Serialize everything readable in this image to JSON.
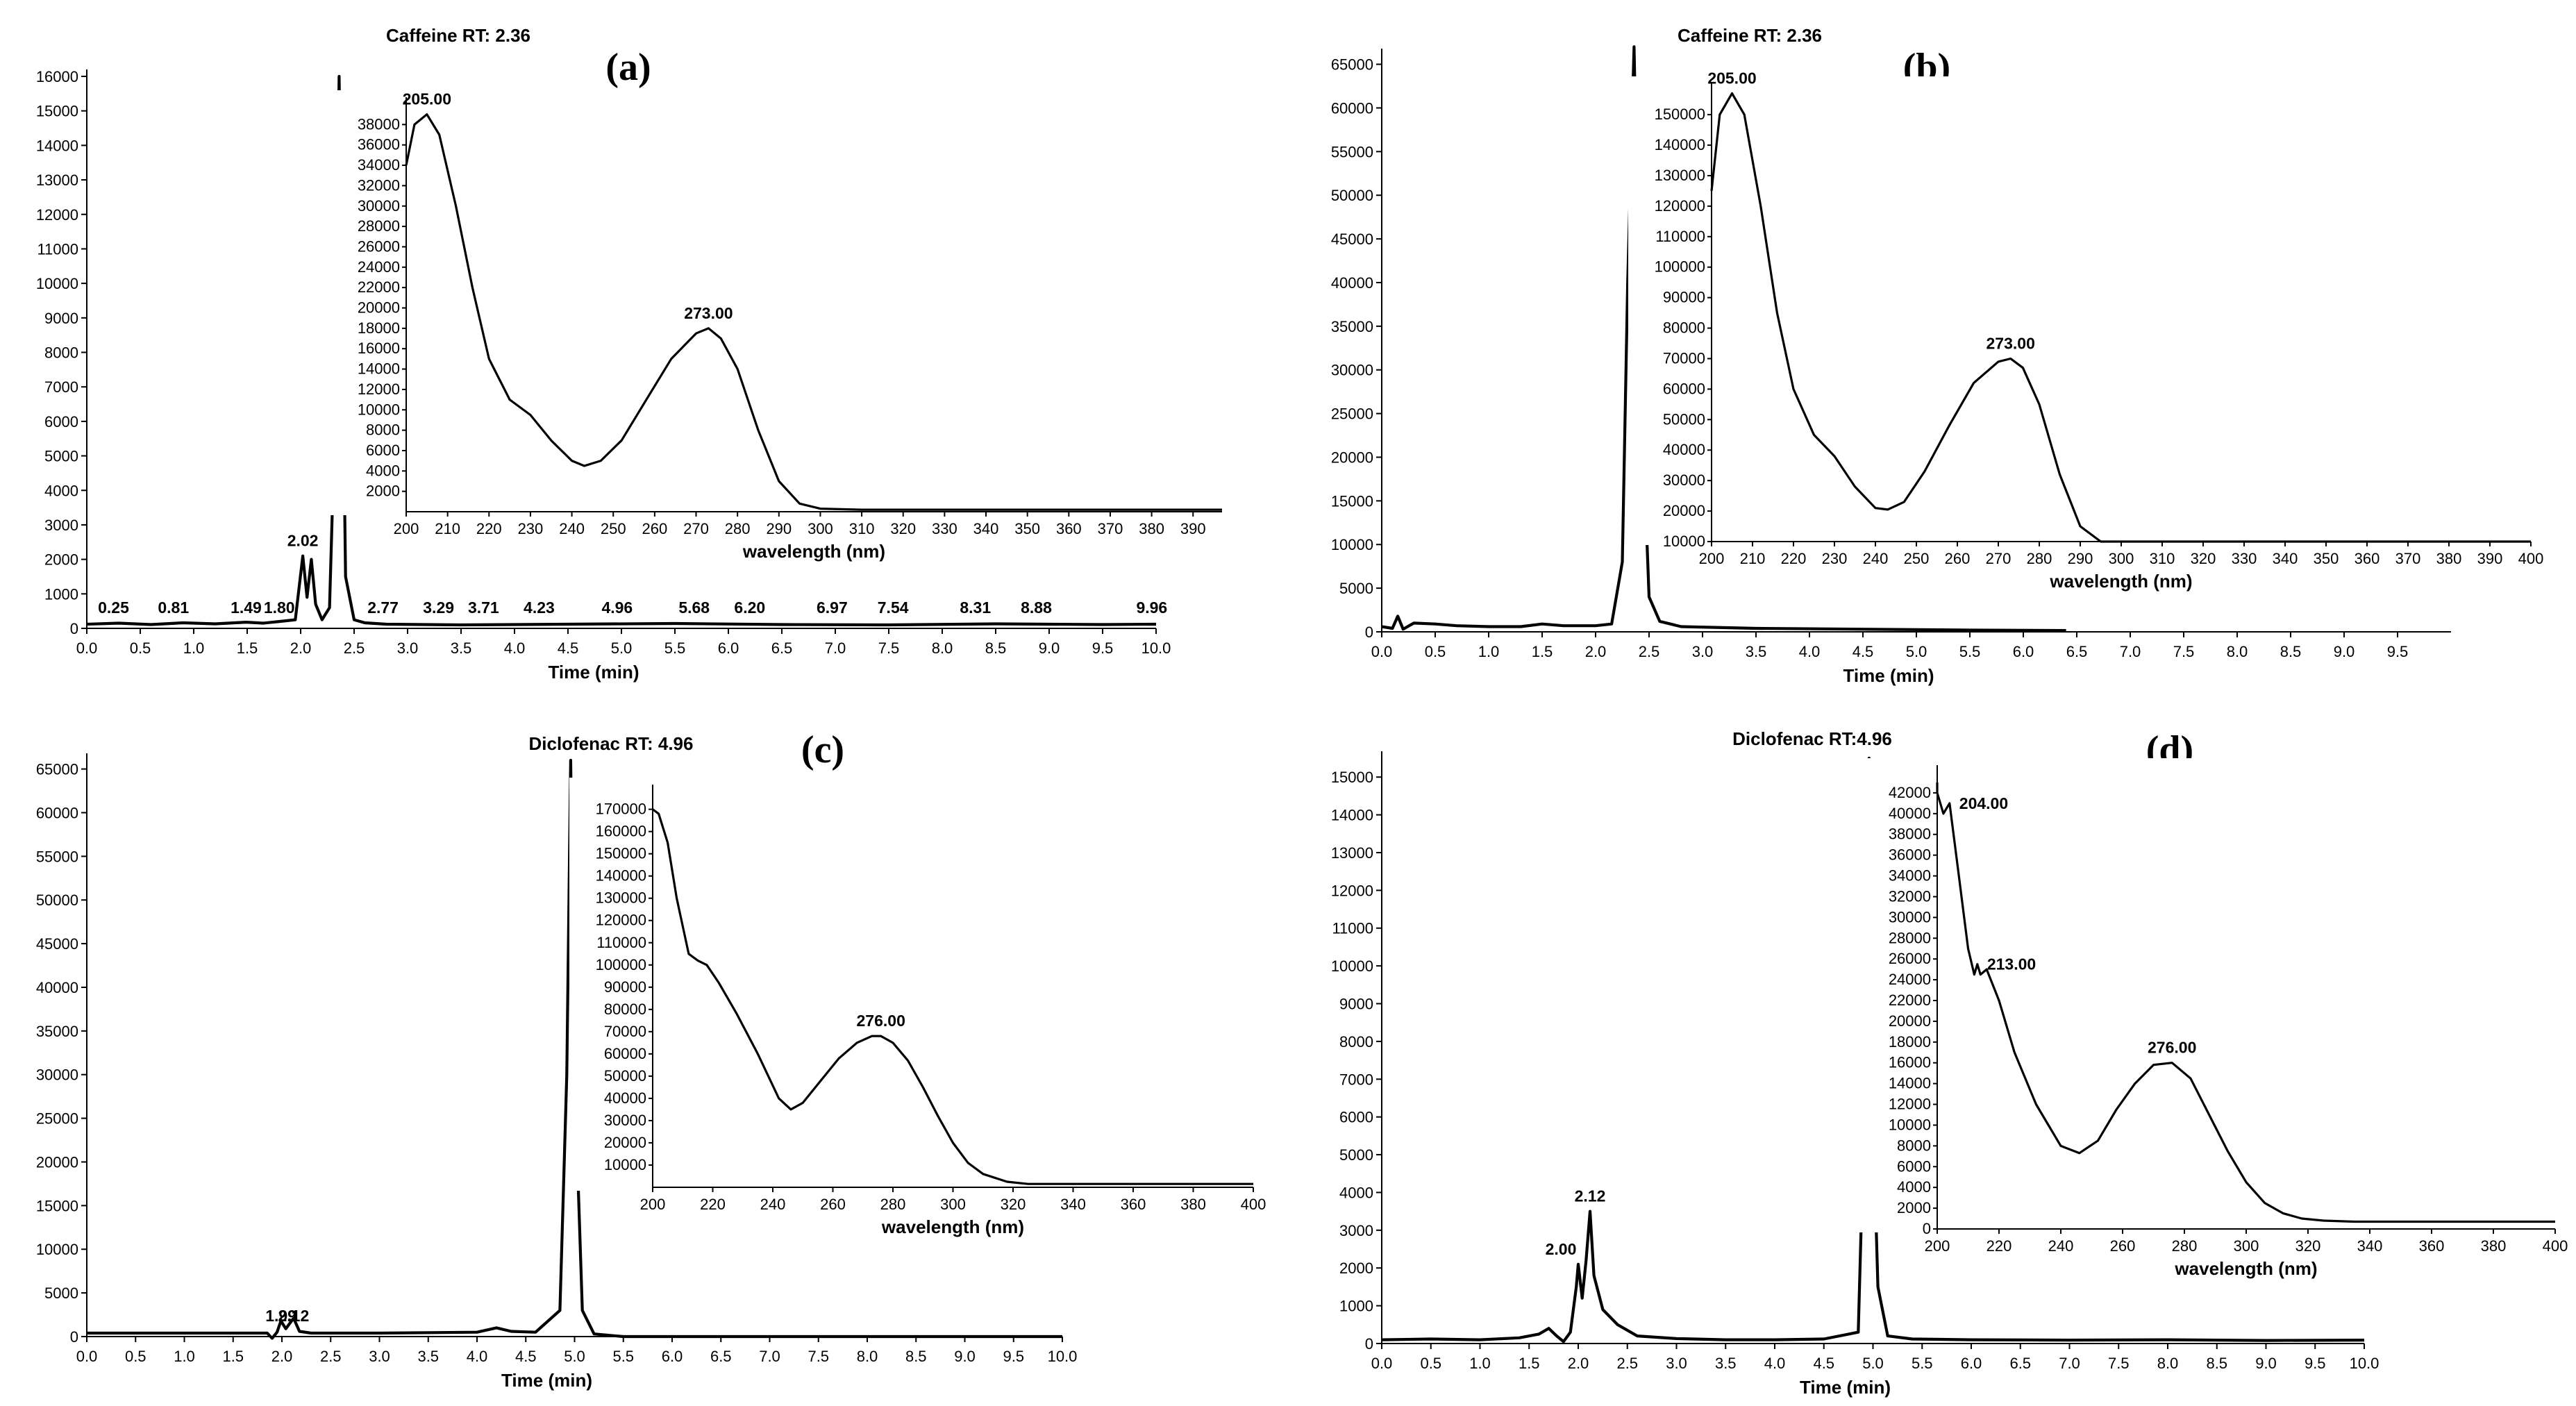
{
  "chart_data": [
    {
      "type": "line",
      "panel": "(a)",
      "title": "Caffeine RT: 2.36",
      "xlabel": "Time (min)",
      "ylabel": "",
      "xlim": [
        0,
        10.0
      ],
      "ylim": [
        0,
        16000
      ],
      "x_ticks": [
        0.0,
        0.5,
        1.0,
        1.5,
        2.0,
        2.5,
        3.0,
        3.5,
        4.0,
        4.5,
        5.0,
        5.5,
        6.0,
        6.5,
        7.0,
        7.5,
        8.0,
        8.5,
        9.0,
        9.5,
        10.0
      ],
      "y_ticks": [
        0,
        1000,
        2000,
        3000,
        4000,
        5000,
        6000,
        7000,
        8000,
        9000,
        10000,
        11000,
        12000,
        13000,
        14000,
        15000,
        16000
      ],
      "series": [
        {
          "name": "chromatogram",
          "x": [
            0.0,
            0.3,
            0.6,
            0.9,
            1.2,
            1.49,
            1.65,
            1.8,
            1.95,
            2.02,
            2.06,
            2.1,
            2.14,
            2.2,
            2.27,
            2.32,
            2.36,
            2.42,
            2.5,
            2.6,
            2.8,
            3.5,
            4.5,
            5.5,
            6.5,
            7.5,
            8.5,
            9.5,
            10.0
          ],
          "y": [
            120,
            150,
            110,
            160,
            130,
            180,
            150,
            200,
            250,
            2100,
            900,
            2000,
            700,
            250,
            600,
            6000,
            16000,
            1500,
            250,
            160,
            120,
            100,
            120,
            140,
            110,
            100,
            130,
            110,
            120
          ]
        }
      ],
      "peak_labels": [
        {
          "x": 0.25,
          "label": "0.25"
        },
        {
          "x": 0.81,
          "label": "0.81"
        },
        {
          "x": 1.49,
          "label": "1.49"
        },
        {
          "x": 1.8,
          "label": "1.80"
        },
        {
          "x": 2.02,
          "label": "2.02"
        },
        {
          "x": 2.77,
          "label": "2.77"
        },
        {
          "x": 3.29,
          "label": "3.29"
        },
        {
          "x": 3.71,
          "label": "3.71"
        },
        {
          "x": 4.23,
          "label": "4.23"
        },
        {
          "x": 4.96,
          "label": "4.96"
        },
        {
          "x": 5.68,
          "label": "5.68"
        },
        {
          "x": 6.2,
          "label": "6.20"
        },
        {
          "x": 6.97,
          "label": "6.97"
        },
        {
          "x": 7.54,
          "label": "7.54"
        },
        {
          "x": 8.31,
          "label": "8.31"
        },
        {
          "x": 8.88,
          "label": "8.88"
        },
        {
          "x": 9.96,
          "label": "9.96"
        }
      ],
      "inset": {
        "type": "line",
        "xlabel": "wavelength (nm)",
        "xlim": [
          200,
          397
        ],
        "ylim": [
          0,
          40000
        ],
        "x_ticks": [
          200,
          210,
          220,
          230,
          240,
          250,
          260,
          270,
          280,
          290,
          300,
          310,
          320,
          330,
          340,
          350,
          360,
          370,
          380,
          390
        ],
        "y_ticks": [
          2000,
          4000,
          6000,
          8000,
          10000,
          12000,
          14000,
          16000,
          18000,
          20000,
          22000,
          24000,
          26000,
          28000,
          30000,
          32000,
          34000,
          36000,
          38000
        ],
        "series": [
          {
            "name": "UV spectrum",
            "x": [
              200,
              202,
              205,
              208,
              212,
              216,
              220,
              225,
              230,
              235,
              240,
              243,
              247,
              252,
              258,
              264,
              270,
              273,
              276,
              280,
              285,
              290,
              295,
              300,
              310,
              330,
              360,
              397
            ],
            "y": [
              34000,
              38000,
              39000,
              37000,
              30000,
              22000,
              15000,
              11000,
              9500,
              7000,
              5000,
              4500,
              5000,
              7000,
              11000,
              15000,
              17500,
              18000,
              17000,
              14000,
              8000,
              3000,
              800,
              300,
              200,
              200,
              200,
              200
            ]
          }
        ],
        "peak_labels": [
          {
            "x": 205,
            "label": "205.00"
          },
          {
            "x": 273,
            "label": "273.00"
          }
        ]
      }
    },
    {
      "type": "line",
      "panel": "(b)",
      "title": "Caffeine RT: 2.36",
      "xlabel": "Time (min)",
      "ylabel": "",
      "xlim": [
        0,
        10.0
      ],
      "ylim": [
        0,
        66000
      ],
      "x_ticks": [
        0.0,
        0.5,
        1.0,
        1.5,
        2.0,
        2.5,
        3.0,
        3.5,
        4.0,
        4.5,
        5.0,
        5.5,
        6.0,
        6.5,
        7.0,
        7.5,
        8.0,
        8.5,
        9.0,
        9.5
      ],
      "y_ticks": [
        0,
        5000,
        10000,
        15000,
        20000,
        25000,
        30000,
        35000,
        40000,
        45000,
        50000,
        55000,
        60000,
        65000
      ],
      "series": [
        {
          "name": "chromatogram",
          "x": [
            0.0,
            0.1,
            0.15,
            0.2,
            0.3,
            0.5,
            0.7,
            1.0,
            1.3,
            1.5,
            1.7,
            2.0,
            2.15,
            2.25,
            2.3,
            2.36,
            2.42,
            2.5,
            2.6,
            2.8,
            3.5,
            4.5,
            5.5,
            6.4
          ],
          "y": [
            600,
            400,
            1800,
            300,
            1000,
            900,
            700,
            600,
            600,
            900,
            700,
            700,
            900,
            8000,
            40000,
            67000,
            30000,
            4000,
            1200,
            600,
            400,
            300,
            200,
            150
          ]
        }
      ],
      "peak_labels": [],
      "inset": {
        "type": "line",
        "xlabel": "wavelength (nm)",
        "xlim": [
          200,
          400
        ],
        "ylim": [
          10000,
          158000
        ],
        "x_ticks": [
          200,
          210,
          220,
          230,
          240,
          250,
          260,
          270,
          280,
          290,
          300,
          310,
          320,
          330,
          340,
          350,
          360,
          370,
          380,
          390,
          400
        ],
        "y_ticks": [
          10000,
          20000,
          30000,
          40000,
          50000,
          60000,
          70000,
          80000,
          90000,
          100000,
          110000,
          120000,
          130000,
          140000,
          150000
        ],
        "series": [
          {
            "name": "UV spectrum",
            "x": [
              200,
              202,
              205,
              208,
              212,
              216,
              220,
              225,
              230,
              235,
              240,
              243,
              247,
              252,
              258,
              264,
              270,
              273,
              276,
              280,
              285,
              290,
              295,
              300,
              310,
              330,
              400
            ],
            "y": [
              125000,
              150000,
              157000,
              150000,
              120000,
              85000,
              60000,
              45000,
              38000,
              28000,
              21000,
              20500,
              23000,
              33000,
              48000,
              62000,
              69000,
              70000,
              67000,
              55000,
              32000,
              15000,
              8000,
              5000,
              4500,
              4500,
              4500
            ]
          }
        ],
        "peak_labels": [
          {
            "x": 205,
            "label": "205.00"
          },
          {
            "x": 273,
            "label": "273.00"
          }
        ]
      }
    },
    {
      "type": "line",
      "panel": "(c)",
      "title": "Diclofenac RT: 4.96",
      "xlabel": "Time (min)",
      "ylabel": "",
      "xlim": [
        0,
        10.0
      ],
      "ylim": [
        0,
        66000
      ],
      "x_ticks": [
        0.0,
        0.5,
        1.0,
        1.5,
        2.0,
        2.5,
        3.0,
        3.5,
        4.0,
        4.5,
        5.0,
        5.5,
        6.0,
        6.5,
        7.0,
        7.5,
        8.0,
        8.5,
        9.0,
        9.5,
        10.0
      ],
      "y_ticks": [
        0,
        5000,
        10000,
        15000,
        20000,
        25000,
        30000,
        35000,
        40000,
        45000,
        50000,
        55000,
        60000,
        65000
      ],
      "series": [
        {
          "name": "chromatogram",
          "x": [
            0.0,
            0.5,
            1.0,
            1.5,
            1.85,
            1.9,
            1.95,
            1.99,
            2.04,
            2.08,
            2.12,
            2.18,
            2.3,
            3.0,
            4.0,
            4.2,
            4.35,
            4.6,
            4.85,
            4.92,
            4.96,
            5.0,
            5.08,
            5.2,
            5.5,
            6.5,
            7.5,
            8.5,
            9.5,
            10.0
          ],
          "y": [
            400,
            400,
            400,
            400,
            400,
            -200,
            500,
            1800,
            900,
            1500,
            2100,
            600,
            400,
            400,
            500,
            1000,
            600,
            500,
            3000,
            30000,
            66000,
            30000,
            3000,
            300,
            0,
            0,
            0,
            0,
            0,
            0
          ]
        }
      ],
      "peak_labels": [
        {
          "x": 1.99,
          "label": "1.99"
        },
        {
          "x": 2.12,
          "label": "2.12"
        }
      ],
      "inset": {
        "type": "line",
        "xlabel": "wavelength (nm)",
        "xlim": [
          200,
          400
        ],
        "ylim": [
          0,
          178000
        ],
        "x_ticks": [
          200,
          220,
          240,
          260,
          280,
          300,
          320,
          340,
          360,
          380,
          400
        ],
        "y_ticks": [
          10000,
          20000,
          30000,
          40000,
          50000,
          60000,
          70000,
          80000,
          90000,
          100000,
          110000,
          120000,
          130000,
          140000,
          150000,
          160000,
          170000
        ],
        "series": [
          {
            "name": "UV spectrum",
            "x": [
              200,
              202,
              205,
              208,
              212,
              215,
              218,
              222,
              228,
              235,
              242,
              246,
              250,
              256,
              262,
              268,
              273,
              276,
              280,
              285,
              290,
              295,
              300,
              305,
              310,
              318,
              325,
              340,
              400
            ],
            "y": [
              170000,
              168000,
              155000,
              130000,
              105000,
              102000,
              100000,
              92000,
              78000,
              60000,
              40000,
              35000,
              38000,
              48000,
              58000,
              65000,
              68000,
              68000,
              65000,
              57000,
              45000,
              32000,
              20000,
              11000,
              6000,
              2500,
              1500,
              1500,
              1500
            ]
          }
        ],
        "peak_labels": [
          {
            "x": 276,
            "label": "276.00"
          }
        ]
      }
    },
    {
      "type": "line",
      "panel": "(d)",
      "title": "Diclofenac RT:4.96",
      "xlabel": "Time (min)",
      "ylabel": "",
      "xlim": [
        0,
        10.0
      ],
      "ylim": [
        0,
        15500
      ],
      "x_ticks": [
        0.0,
        0.5,
        1.0,
        1.5,
        2.0,
        2.5,
        3.0,
        3.5,
        4.0,
        4.5,
        5.0,
        5.5,
        6.0,
        6.5,
        7.0,
        7.5,
        8.0,
        8.5,
        9.0,
        9.5,
        10.0
      ],
      "y_ticks": [
        0,
        1000,
        2000,
        3000,
        4000,
        5000,
        6000,
        7000,
        8000,
        9000,
        10000,
        11000,
        12000,
        13000,
        14000,
        15000
      ],
      "series": [
        {
          "name": "chromatogram",
          "x": [
            0.0,
            0.5,
            1.0,
            1.4,
            1.6,
            1.7,
            1.78,
            1.85,
            1.92,
            1.98,
            2.0,
            2.04,
            2.08,
            2.12,
            2.16,
            2.25,
            2.4,
            2.6,
            3.0,
            3.5,
            4.0,
            4.5,
            4.85,
            4.9,
            4.96,
            5.0,
            5.05,
            5.15,
            5.4,
            6.0,
            7.0,
            8.0,
            9.0,
            10.0
          ],
          "y": [
            100,
            120,
            100,
            150,
            250,
            400,
            200,
            50,
            300,
            1500,
            2100,
            1200,
            2200,
            3500,
            1800,
            900,
            500,
            200,
            130,
            100,
            100,
            120,
            300,
            5000,
            15500,
            6000,
            1500,
            200,
            120,
            100,
            90,
            100,
            80,
            90
          ]
        }
      ],
      "peak_labels": [
        {
          "x": 2.0,
          "label": "2.00"
        },
        {
          "x": 2.12,
          "label": "2.12"
        }
      ],
      "inset": {
        "type": "line",
        "xlabel": "wavelength (nm)",
        "xlim": [
          200,
          400
        ],
        "ylim": [
          0,
          44000
        ],
        "x_ticks": [
          200,
          220,
          240,
          260,
          280,
          300,
          320,
          340,
          360,
          380,
          400
        ],
        "y_ticks": [
          0,
          2000,
          4000,
          6000,
          8000,
          10000,
          12000,
          14000,
          16000,
          18000,
          20000,
          22000,
          24000,
          26000,
          28000,
          30000,
          32000,
          34000,
          36000,
          38000,
          40000,
          42000
        ],
        "series": [
          {
            "name": "UV spectrum",
            "x": [
              197,
              200,
              202,
              204,
              207,
              210,
              212,
              213,
              214,
              216,
              220,
              225,
              232,
              240,
              246,
              252,
              258,
              264,
              270,
              276,
              282,
              288,
              294,
              300,
              306,
              312,
              318,
              325,
              335,
              400
            ],
            "y": [
              43000,
              42000,
              40000,
              41000,
              34000,
              27000,
              24500,
              25500,
              24500,
              25000,
              22000,
              17000,
              12000,
              8000,
              7300,
              8500,
              11500,
              14000,
              15800,
              16000,
              14500,
              11000,
              7500,
              4500,
              2500,
              1500,
              1000,
              800,
              700,
              700
            ]
          }
        ],
        "peak_labels": [
          {
            "x": 204,
            "label": "204.00"
          },
          {
            "x": 213,
            "label": "213.00"
          },
          {
            "x": 276,
            "label": "276.00"
          }
        ]
      }
    }
  ]
}
